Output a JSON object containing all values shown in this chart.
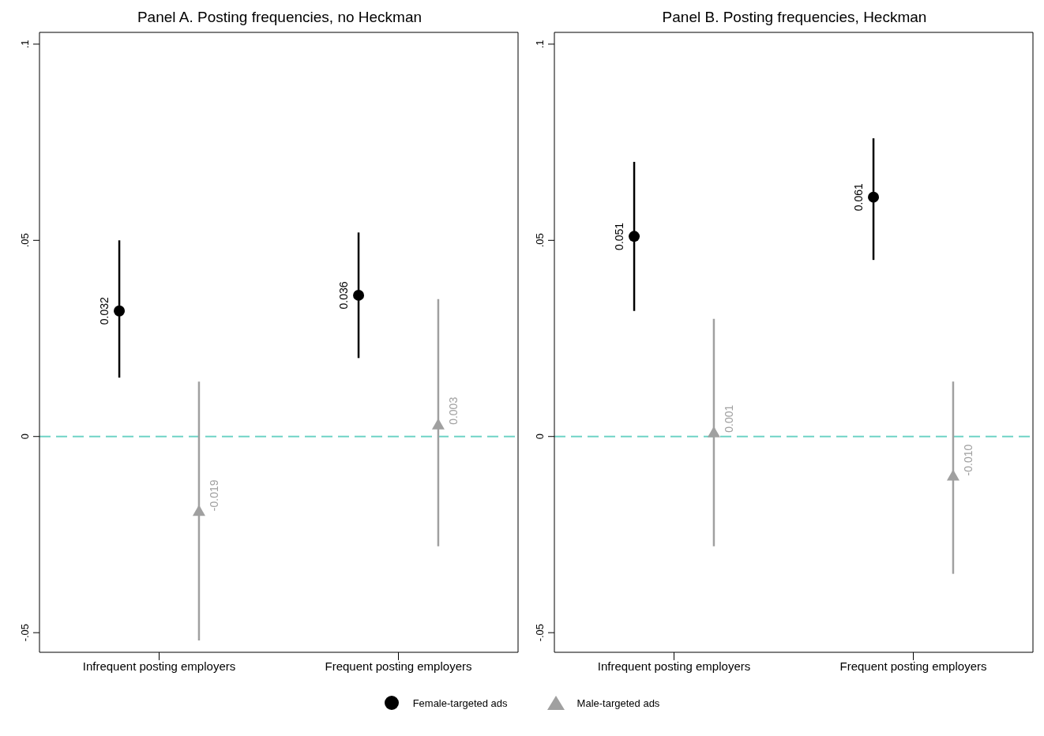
{
  "chart_data": [
    {
      "type": "scatter",
      "title": "Panel A. Posting frequencies, no Heckman",
      "categories": [
        "Infrequent posting employers",
        "Frequent posting employers"
      ],
      "ylim": [
        -0.055,
        0.103
      ],
      "yticks": [
        {
          "value": -0.05,
          "label": "-.05"
        },
        {
          "value": 0,
          "label": "0"
        },
        {
          "value": 0.05,
          "label": ".05"
        },
        {
          "value": 0.1,
          "label": ".1"
        }
      ],
      "grid": false,
      "legend": "bottom",
      "ref_lines": [
        {
          "axis": "y",
          "value": 0,
          "color": "#6fd3c6",
          "line_style": "dashed"
        }
      ],
      "series": [
        {
          "name": "Female-targeted ads",
          "color": "#000000",
          "marker": "circle",
          "values": [
            0.032,
            0.036
          ],
          "errors": [
            [
              0.015,
              0.05
            ],
            [
              0.02,
              0.052
            ]
          ],
          "value_labels": [
            "0.032",
            "0.036"
          ]
        },
        {
          "name": "Male-targeted ads",
          "color": "#a0a0a0",
          "marker": "triangle",
          "values": [
            -0.019,
            0.003
          ],
          "errors": [
            [
              -0.052,
              0.014
            ],
            [
              -0.028,
              0.035
            ]
          ],
          "value_labels": [
            "-0.019",
            "0.003"
          ]
        }
      ]
    },
    {
      "type": "scatter",
      "title": "Panel B. Posting frequencies, Heckman",
      "categories": [
        "Infrequent posting employers",
        "Frequent posting employers"
      ],
      "ylim": [
        -0.055,
        0.103
      ],
      "yticks": [
        {
          "value": -0.05,
          "label": "-.05"
        },
        {
          "value": 0,
          "label": "0"
        },
        {
          "value": 0.05,
          "label": ".05"
        },
        {
          "value": 0.1,
          "label": ".1"
        }
      ],
      "grid": false,
      "ref_lines": [
        {
          "axis": "y",
          "value": 0,
          "color": "#6fd3c6",
          "line_style": "dashed"
        }
      ],
      "series": [
        {
          "color": "#000000",
          "marker": "circle",
          "values": [
            0.051,
            0.061
          ],
          "errors": [
            [
              0.032,
              0.07
            ],
            [
              0.045,
              0.076
            ]
          ],
          "value_labels": [
            "0.051",
            "0.061"
          ]
        },
        {
          "color": "#a0a0a0",
          "marker": "triangle",
          "values": [
            0.001,
            -0.01
          ],
          "errors": [
            [
              -0.028,
              0.03
            ],
            [
              -0.035,
              0.014
            ]
          ],
          "value_labels": [
            "0.001",
            "-0.010"
          ]
        }
      ]
    }
  ]
}
